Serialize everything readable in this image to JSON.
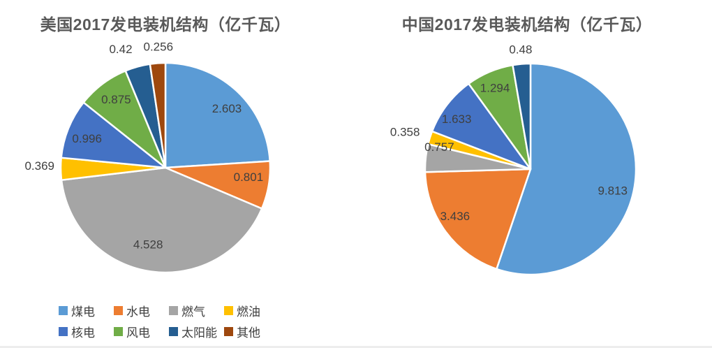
{
  "chart_data": [
    {
      "type": "pie",
      "title": "美国2017发电装机结构（亿千瓦）",
      "unit": "亿千瓦",
      "legend_position": "bottom",
      "legend_rows": 2,
      "direction": "clockwise",
      "start_angle": "12-oclock",
      "slices": [
        {
          "key": "coal",
          "label": "煤电",
          "value": 2.603,
          "color": "#5B9BD5",
          "label_placement": "inside",
          "nudge": [
            11,
            -3
          ]
        },
        {
          "key": "hydro",
          "label": "水电",
          "value": 0.801,
          "color": "#ED7D31",
          "label_placement": "inside",
          "nudge": [
            8,
            -6
          ]
        },
        {
          "key": "gas",
          "label": "燃气",
          "value": 4.528,
          "color": "#A5A5A5",
          "label_placement": "inside",
          "nudge": [
            -9,
            -2
          ]
        },
        {
          "key": "oil",
          "label": "燃油",
          "value": 0.369,
          "color": "#FFC000",
          "label_placement": "outside",
          "nudge": [
            6,
            -5
          ]
        },
        {
          "key": "nuclear",
          "label": "核电",
          "value": 0.996,
          "color": "#4472C4",
          "label_placement": "inside",
          "nudge": [
            -8,
            0
          ]
        },
        {
          "key": "wind",
          "label": "风电",
          "value": 0.875,
          "color": "#70AD47",
          "label_placement": "inside",
          "nudge": [
            -3,
            -8
          ]
        },
        {
          "key": "solar",
          "label": "太阳能",
          "value": 0.42,
          "color": "#255E91",
          "label_placement": "outside",
          "nudge": [
            -20,
            -5
          ]
        },
        {
          "key": "other",
          "label": "其他",
          "value": 0.256,
          "color": "#9E480E",
          "label_placement": "outside",
          "nudge": [
            2,
            -3
          ]
        }
      ]
    },
    {
      "type": "pie",
      "title": "中国2017发电装机结构（亿千瓦）",
      "unit": "亿千瓦",
      "legend_position": "bottom",
      "legend_rows": 1,
      "direction": "clockwise",
      "start_angle": "12-oclock",
      "slices": [
        {
          "key": "coal",
          "label": "煤电",
          "value": 9.813,
          "color": "#5B9BD5",
          "label_placement": "inside",
          "nudge": [
            6,
            12
          ]
        },
        {
          "key": "hydro",
          "label": "水电",
          "value": 3.436,
          "color": "#ED7D31",
          "label_placement": "inside",
          "nudge": [
            -17,
            0
          ]
        },
        {
          "key": "gas",
          "label": "燃气",
          "value": 0.757,
          "color": "#A5A5A5",
          "label_placement": "inside",
          "nudge": [
            -18,
            -20
          ]
        },
        {
          "key": "nuclear",
          "label": "核电",
          "value": 0.358,
          "color": "#FFC000",
          "label_placement": "outside",
          "nudge": [
            0,
            -4
          ]
        },
        {
          "key": "wind",
          "label": "风电",
          "value": 1.633,
          "color": "#4472C4",
          "label_placement": "inside",
          "nudge": [
            -16,
            -3
          ]
        },
        {
          "key": "solar",
          "label": "太阳能",
          "value": 1.294,
          "color": "#70AD47",
          "label_placement": "inside",
          "nudge": [
            -7,
            -12
          ]
        },
        {
          "key": "other",
          "label": "其他",
          "value": 0.48,
          "color": "#255E91",
          "label_placement": "outside",
          "nudge": [
            0,
            0
          ]
        }
      ]
    }
  ]
}
